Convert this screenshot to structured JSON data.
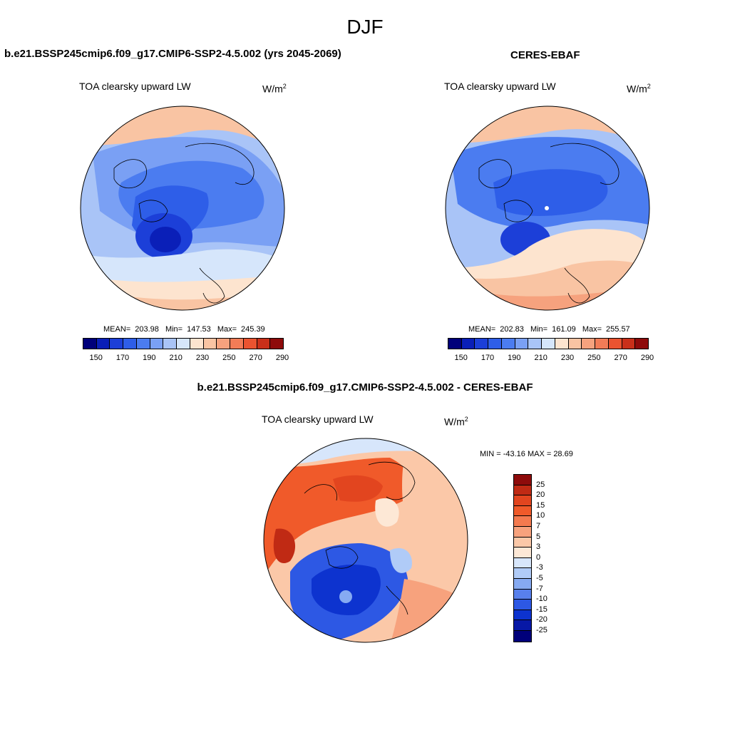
{
  "page": {
    "title": "DJF",
    "var_label": "TOA clearsky upward LW",
    "units_base": "W/m",
    "units_exp": "2"
  },
  "panels": {
    "model": {
      "title": "b.e21.BSSP245cmip6.f09_g17.CMIP6-SSP2-4.5.002 (yrs 2045-2069)",
      "mean_label": "MEAN=",
      "mean": "203.98",
      "min_label": "Min=",
      "min": "147.53",
      "max_label": "Max=",
      "max": "245.39"
    },
    "obs": {
      "title": "CERES-EBAF",
      "mean_label": "MEAN=",
      "mean": "202.83",
      "min_label": "Min=",
      "min": "161.09",
      "max_label": "Max=",
      "max": "255.57"
    },
    "diff": {
      "title": "b.e21.BSSP245cmip6.f09_g17.CMIP6-SSP2-4.5.002 - CERES-EBAF",
      "minmax_text": "MIN = -43.16 MAX =  28.69"
    }
  },
  "colorbar_abs": {
    "colors": [
      "#00007a",
      "#0a1fb8",
      "#1c3fd8",
      "#2e5ee8",
      "#4b7cf0",
      "#7aa0f4",
      "#a9c4f7",
      "#d6e6fb",
      "#fde4cf",
      "#f9c4a3",
      "#f6a27e",
      "#f27c57",
      "#ea5330",
      "#c9301a",
      "#8e0b0b"
    ],
    "tick_labels": [
      "150",
      "170",
      "190",
      "210",
      "230",
      "250",
      "270",
      "290"
    ]
  },
  "colorbar_diff": {
    "colors": [
      "#8e0b0b",
      "#c02a14",
      "#e2451f",
      "#f05a2a",
      "#f47a4f",
      "#f7a27d",
      "#fbc8a8",
      "#fde8d6",
      "#d7e6fb",
      "#b0cbf7",
      "#86aaf2",
      "#5880ec",
      "#2d58e4",
      "#0d33cf",
      "#0718a6",
      "#00007a"
    ],
    "tick_labels": [
      "25",
      "20",
      "15",
      "10",
      "7",
      "5",
      "3",
      "0",
      "-3",
      "-5",
      "-7",
      "-10",
      "-15",
      "-20",
      "-25"
    ]
  }
}
